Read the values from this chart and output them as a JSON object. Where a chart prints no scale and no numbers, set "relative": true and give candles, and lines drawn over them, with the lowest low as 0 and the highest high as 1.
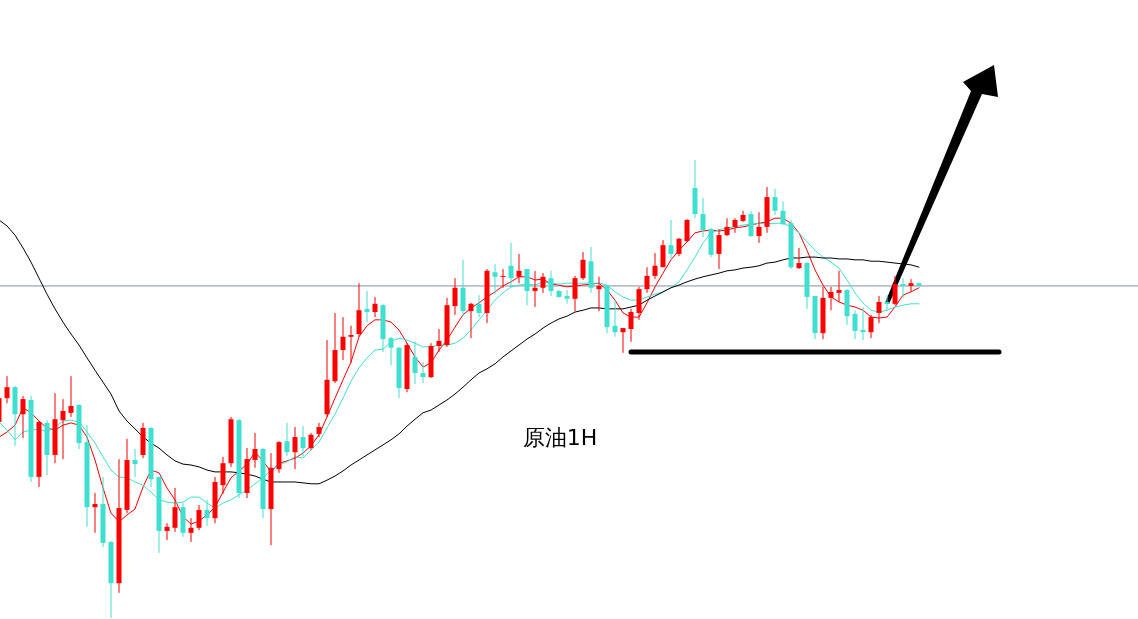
{
  "chart_data": {
    "type": "candlestick",
    "relative": true,
    "categories": [
      null,
      null,
      null,
      null,
      null,
      null,
      null,
      null,
      null,
      null,
      null,
      null,
      null,
      null,
      null,
      null,
      null,
      null,
      null,
      null,
      null,
      null,
      null,
      null,
      null,
      null,
      null,
      null,
      null,
      null,
      null,
      null,
      null,
      null,
      null,
      null,
      null,
      null,
      null,
      null,
      null,
      null,
      null,
      null,
      null,
      null,
      null,
      null,
      null,
      null,
      null,
      null,
      null,
      null,
      null,
      null,
      null,
      null,
      null,
      null,
      null,
      null,
      null,
      null,
      null,
      null,
      null,
      null,
      null,
      null,
      null,
      null,
      null,
      null,
      null,
      null,
      null,
      null,
      null,
      null,
      null,
      null,
      null,
      null,
      null,
      null,
      null,
      null,
      null,
      null,
      null,
      null,
      null,
      null,
      null,
      null,
      null,
      null,
      null,
      null,
      null,
      null,
      null,
      null,
      null,
      null,
      null,
      null,
      null,
      null,
      null,
      null,
      null,
      null,
      null,
      null,
      null,
      null,
      null,
      null,
      null,
      null,
      null,
      null,
      null,
      null,
      null,
      null,
      null,
      null,
      null,
      null,
      null,
      null,
      null,
      null,
      null,
      null,
      null,
      null,
      null,
      null,
      null
    ],
    "ohlc": [
      [
        0.428,
        0.487,
        0.421,
        0.48
      ],
      [
        0.48,
        0.528,
        0.469,
        0.504
      ],
      [
        0.504,
        0.507,
        0.376,
        0.445
      ],
      [
        0.445,
        0.485,
        0.393,
        0.478
      ],
      [
        0.476,
        0.485,
        0.297,
        0.308
      ],
      [
        0.308,
        0.43,
        0.286,
        0.428
      ],
      [
        0.426,
        0.432,
        0.312,
        0.356
      ],
      [
        0.356,
        0.491,
        0.338,
        0.434
      ],
      [
        0.432,
        0.478,
        0.347,
        0.452
      ],
      [
        0.448,
        0.528,
        0.439,
        0.463
      ],
      [
        0.465,
        0.467,
        0.369,
        0.382
      ],
      [
        0.384,
        0.421,
        0.199,
        0.242
      ],
      [
        0.242,
        0.273,
        0.186,
        0.249
      ],
      [
        0.249,
        0.308,
        0.155,
        0.164
      ],
      [
        0.166,
        0.168,
        0,
        0.076
      ],
      [
        0.076,
        0.347,
        0.055,
        0.24
      ],
      [
        0.236,
        0.391,
        0.229,
        0.345
      ],
      [
        0.345,
        0.369,
        0.308,
        0.336
      ],
      [
        0.356,
        0.426,
        0.349,
        0.415
      ],
      [
        0.415,
        0.417,
        0.286,
        0.303
      ],
      [
        0.308,
        0.308,
        0.142,
        0.19
      ],
      [
        0.19,
        0.207,
        0.17,
        0.199
      ],
      [
        0.197,
        0.284,
        0.188,
        0.242
      ],
      [
        0.242,
        0.251,
        0.177,
        0.186
      ],
      [
        0.186,
        0.218,
        0.166,
        0.197
      ],
      [
        0.197,
        0.247,
        0.192,
        0.236
      ],
      [
        0.236,
        0.258,
        0.201,
        0.218
      ],
      [
        0.218,
        0.308,
        0.207,
        0.297
      ],
      [
        0.29,
        0.352,
        0.271,
        0.338
      ],
      [
        0.338,
        0.439,
        0.33,
        0.434
      ],
      [
        0.432,
        0.434,
        0.262,
        0.273
      ],
      [
        0.273,
        0.371,
        0.262,
        0.347
      ],
      [
        0.345,
        0.404,
        0.328,
        0.369
      ],
      [
        0.369,
        0.371,
        0.218,
        0.238
      ],
      [
        0.238,
        0.36,
        0.159,
        0.328
      ],
      [
        0.325,
        0.386,
        0.317,
        0.384
      ],
      [
        0.386,
        0.426,
        0.354,
        0.362
      ],
      [
        0.362,
        0.417,
        0.325,
        0.395
      ],
      [
        0.395,
        0.419,
        0.352,
        0.371
      ],
      [
        0.371,
        0.404,
        0.367,
        0.4
      ],
      [
        0.402,
        0.426,
        0.395,
        0.417
      ],
      [
        0.445,
        0.607,
        0.439,
        0.52
      ],
      [
        0.517,
        0.666,
        0.513,
        0.585
      ],
      [
        0.585,
        0.657,
        0.563,
        0.614
      ],
      [
        0.614,
        0.638,
        0.557,
        0.618
      ],
      [
        0.62,
        0.731,
        0.614,
        0.672
      ],
      [
        0.675,
        0.714,
        0.646,
        0.668
      ],
      [
        0.668,
        0.701,
        0.657,
        0.686
      ],
      [
        0.683,
        0.686,
        0.581,
        0.609
      ],
      [
        0.611,
        0.614,
        0.552,
        0.59
      ],
      [
        0.59,
        0.592,
        0.48,
        0.502
      ],
      [
        0.5,
        0.6,
        0.493,
        0.596
      ],
      [
        0.57,
        0.603,
        0.511,
        0.535
      ],
      [
        0.535,
        0.559,
        0.513,
        0.526
      ],
      [
        0.526,
        0.6,
        0.524,
        0.594
      ],
      [
        0.594,
        0.631,
        0.581,
        0.605
      ],
      [
        0.596,
        0.699,
        0.592,
        0.683
      ],
      [
        0.681,
        0.742,
        0.662,
        0.721
      ],
      [
        0.721,
        0.782,
        0.659,
        0.67
      ],
      [
        0.67,
        0.688,
        0.611,
        0.686
      ],
      [
        0.686,
        0.705,
        0.657,
        0.666
      ],
      [
        0.666,
        0.762,
        0.644,
        0.758
      ],
      [
        0.755,
        0.773,
        0.707,
        0.745
      ],
      [
        0.745,
        0.762,
        0.721,
        0.747
      ],
      [
        0.769,
        0.819,
        0.721,
        0.742
      ],
      [
        0.745,
        0.795,
        0.731,
        0.758
      ],
      [
        0.762,
        0.762,
        0.683,
        0.714
      ],
      [
        0.714,
        0.758,
        0.679,
        0.721
      ],
      [
        0.721,
        0.753,
        0.71,
        0.745
      ],
      [
        0.742,
        0.758,
        0.703,
        0.714
      ],
      [
        0.714,
        0.716,
        0.699,
        0.701
      ],
      [
        0.703,
        0.716,
        0.686,
        0.697
      ],
      [
        0.697,
        0.747,
        0.67,
        0.742
      ],
      [
        0.742,
        0.799,
        0.738,
        0.782
      ],
      [
        0.779,
        0.81,
        0.71,
        0.721
      ],
      [
        0.718,
        0.745,
        0.67,
        0.725
      ],
      [
        0.725,
        0.727,
        0.622,
        0.635
      ],
      [
        0.638,
        0.694,
        0.614,
        0.624
      ],
      [
        0.624,
        0.633,
        0.579,
        0.633
      ],
      [
        0.631,
        0.675,
        0.603,
        0.668
      ],
      [
        0.666,
        0.723,
        0.651,
        0.718
      ],
      [
        0.718,
        0.766,
        0.71,
        0.747
      ],
      [
        0.747,
        0.797,
        0.74,
        0.769
      ],
      [
        0.766,
        0.825,
        0.766,
        0.814
      ],
      [
        0.814,
        0.869,
        0.784,
        0.795
      ],
      [
        0.795,
        0.83,
        0.79,
        0.828
      ],
      [
        0.823,
        0.871,
        0.821,
        0.869
      ],
      [
        0.939,
        1,
        0.873,
        0.882
      ],
      [
        0.882,
        0.917,
        0.832,
        0.847
      ],
      [
        0.849,
        0.852,
        0.788,
        0.793
      ],
      [
        0.795,
        0.849,
        0.762,
        0.836
      ],
      [
        0.836,
        0.873,
        0.834,
        0.854
      ],
      [
        0.854,
        0.873,
        0.841,
        0.869
      ],
      [
        0.867,
        0.889,
        0.865,
        0.88
      ],
      [
        0.882,
        0.889,
        0.832,
        0.834
      ],
      [
        0.834,
        0.886,
        0.819,
        0.854
      ],
      [
        0.854,
        0.941,
        0.841,
        0.919
      ],
      [
        0.919,
        0.937,
        0.88,
        0.889
      ],
      [
        0.889,
        0.91,
        0.858,
        0.86
      ],
      [
        0.862,
        0.869,
        0.762,
        0.766
      ],
      [
        0.764,
        0.808,
        0.762,
        0.775
      ],
      [
        0.775,
        0.777,
        0.675,
        0.701
      ],
      [
        0.703,
        0.703,
        0.609,
        0.622
      ],
      [
        0.622,
        0.723,
        0.609,
        0.699
      ],
      [
        0.699,
        0.723,
        0.672,
        0.712
      ],
      [
        0.71,
        0.758,
        0.69,
        0.716
      ],
      [
        0.716,
        0.718,
        0.64,
        0.659
      ],
      [
        0.664,
        0.672,
        0.609,
        0.627
      ],
      [
        0.629,
        0.679,
        0.607,
        0.624
      ],
      [
        0.624,
        0.662,
        0.611,
        0.657
      ],
      [
        0.666,
        0.703,
        0.644,
        0.69
      ],
      [
        0.69,
        0.705,
        0.672,
        0.686
      ],
      [
        0.686,
        0.747,
        0.683,
        0.729
      ],
      [
        0.729,
        0.742,
        0.699,
        0.725
      ],
      [
        0.725,
        0.74,
        0.712,
        0.731
      ],
      [
        0.731,
        0.731,
        0.725,
        0.725
      ],
      null,
      null,
      null,
      null,
      null,
      null,
      null,
      null,
      null,
      null,
      null,
      null,
      null,
      null,
      null,
      null,
      null,
      null,
      null,
      null,
      null,
      null,
      null,
      null,
      null,
      null,
      null
    ],
    "colors": [
      "#ff0000",
      "#ff0000",
      "#40e0d0",
      "#ff0000",
      "#40e0d0",
      "#ff0000",
      "#40e0d0",
      "#ff0000",
      "#ff0000",
      "#ff0000",
      "#40e0d0",
      "#40e0d0",
      "#ff0000",
      "#40e0d0",
      "#40e0d0",
      "#ff0000",
      "#ff0000",
      "#40e0d0",
      "#ff0000",
      "#40e0d0",
      "#40e0d0",
      "#ff0000",
      "#ff0000",
      "#40e0d0",
      "#ff0000",
      "#ff0000",
      "#40e0d0",
      "#ff0000",
      "#ff0000",
      "#ff0000",
      "#40e0d0",
      "#ff0000",
      "#ff0000",
      "#40e0d0",
      "#ff0000",
      "#ff0000",
      "#40e0d0",
      "#ff0000",
      "#40e0d0",
      "#ff0000",
      "#ff0000",
      "#ff0000",
      "#ff0000",
      "#ff0000",
      "#ff0000",
      "#ff0000",
      "#40e0d0",
      "#ff0000",
      "#40e0d0",
      "#40e0d0",
      "#40e0d0",
      "#ff0000",
      "#40e0d0",
      "#40e0d0",
      "#ff0000",
      "#ff0000",
      "#ff0000",
      "#ff0000",
      "#40e0d0",
      "#ff0000",
      "#40e0d0",
      "#ff0000",
      "#40e0d0",
      "#ff0000",
      "#40e0d0",
      "#ff0000",
      "#40e0d0",
      "#ff0000",
      "#ff0000",
      "#40e0d0",
      "#40e0d0",
      "#40e0d0",
      "#ff0000",
      "#ff0000",
      "#40e0d0",
      "#ff0000",
      "#40e0d0",
      "#40e0d0",
      "#ff0000",
      "#ff0000",
      "#ff0000",
      "#ff0000",
      "#ff0000",
      "#ff0000",
      "#40e0d0",
      "#ff0000",
      "#ff0000",
      "#40e0d0",
      "#40e0d0",
      "#40e0d0",
      "#ff0000",
      "#ff0000",
      "#ff0000",
      "#ff0000",
      "#40e0d0",
      "#ff0000",
      "#ff0000",
      "#40e0d0",
      "#40e0d0",
      "#40e0d0",
      "#ff0000",
      "#40e0d0",
      "#40e0d0",
      "#ff0000",
      "#ff0000",
      "#ff0000",
      "#40e0d0",
      "#40e0d0",
      "#40e0d0",
      "#ff0000",
      "#ff0000",
      "#40e0d0",
      "#ff0000",
      "#40e0d0",
      "#ff0000",
      "#40e0d0",
      null,
      null,
      null,
      null,
      null,
      null,
      null,
      null,
      null,
      null,
      null,
      null,
      null,
      null,
      null,
      null,
      null,
      null,
      null,
      null,
      null,
      null,
      null,
      null,
      null,
      null,
      null
    ],
    "series": [
      {
        "type": "line",
        "color": "#ff0000",
        "values": [
          0.395,
          0.406,
          0.421,
          0.459,
          0.448,
          0.43,
          0.415,
          0.41,
          0.421,
          0.426,
          0.421,
          0.395,
          0.345,
          0.284,
          0.229,
          0.21,
          0.225,
          0.238,
          0.286,
          0.323,
          0.317,
          0.284,
          0.258,
          0.221,
          0.205,
          0.212,
          0.225,
          0.242,
          0.275,
          0.306,
          0.321,
          0.336,
          0.362,
          0.343,
          0.319,
          0.338,
          0.343,
          0.349,
          0.36,
          0.376,
          0.4,
          0.439,
          0.48,
          0.52,
          0.559,
          0.614,
          0.638,
          0.651,
          0.651,
          0.646,
          0.629,
          0.6,
          0.57,
          0.548,
          0.557,
          0.585,
          0.607,
          0.635,
          0.662,
          0.677,
          0.688,
          0.701,
          0.712,
          0.725,
          0.734,
          0.745,
          0.745,
          0.738,
          0.74,
          0.729,
          0.727,
          0.723,
          0.725,
          0.727,
          0.729,
          0.731,
          0.716,
          0.694,
          0.666,
          0.657,
          0.657,
          0.688,
          0.723,
          0.753,
          0.782,
          0.803,
          0.821,
          0.841,
          0.845,
          0.847,
          0.845,
          0.847,
          0.852,
          0.854,
          0.858,
          0.862,
          0.865,
          0.873,
          0.873,
          0.862,
          0.841,
          0.803,
          0.76,
          0.727,
          0.701,
          0.69,
          0.683,
          0.679,
          0.672,
          0.657,
          0.655,
          0.657,
          0.679,
          0.705,
          0.712,
          0.721,
          null,
          null,
          null,
          null,
          null,
          null,
          null,
          null,
          null,
          null,
          null,
          null,
          null,
          null,
          null,
          null,
          null,
          null,
          null,
          null,
          null,
          null,
          null,
          null,
          null,
          null,
          null
        ]
      },
      {
        "type": "line",
        "color": "#40e0d0",
        "values": [
          0.428,
          0.41,
          0.389,
          0.406,
          0.41,
          0.413,
          0.406,
          0.417,
          0.43,
          0.432,
          0.428,
          0.406,
          0.382,
          0.352,
          0.323,
          0.308,
          0.306,
          0.297,
          0.29,
          0.275,
          0.258,
          0.253,
          0.251,
          0.253,
          0.264,
          0.264,
          0.251,
          0.24,
          0.251,
          0.258,
          0.269,
          0.279,
          0.293,
          0.306,
          0.323,
          0.334,
          0.341,
          0.352,
          0.349,
          0.367,
          0.384,
          0.415,
          0.445,
          0.48,
          0.517,
          0.546,
          0.568,
          0.585,
          0.587,
          0.603,
          0.611,
          0.607,
          0.6,
          0.592,
          0.592,
          0.596,
          0.596,
          0.6,
          0.611,
          0.629,
          0.651,
          0.672,
          0.694,
          0.71,
          0.723,
          0.727,
          0.729,
          0.727,
          0.734,
          0.731,
          0.729,
          0.731,
          0.731,
          0.731,
          0.731,
          0.731,
          0.727,
          0.712,
          0.701,
          0.694,
          0.694,
          0.701,
          0.707,
          0.712,
          0.721,
          0.734,
          0.76,
          0.788,
          0.819,
          0.841,
          0.847,
          0.852,
          0.854,
          0.858,
          0.86,
          0.862,
          0.86,
          0.862,
          0.862,
          0.854,
          0.841,
          0.821,
          0.803,
          0.788,
          0.777,
          0.764,
          0.738,
          0.71,
          0.688,
          0.672,
          0.668,
          0.672,
          0.679,
          0.683,
          0.686,
          0.686,
          null,
          null,
          null,
          null,
          null,
          null,
          null,
          null,
          null,
          null,
          null,
          null,
          null,
          null,
          null,
          null,
          null,
          null,
          null,
          null,
          null,
          null,
          null,
          null,
          null,
          null,
          null
        ]
      },
      {
        "type": "line",
        "color": "#000000",
        "values": [
          0.869,
          0.856,
          0.836,
          0.808,
          0.777,
          0.742,
          0.707,
          0.675,
          0.646,
          0.62,
          0.596,
          0.568,
          0.541,
          0.515,
          0.489,
          0.452,
          0.43,
          0.413,
          0.395,
          0.382,
          0.371,
          0.356,
          0.343,
          0.336,
          0.334,
          0.33,
          0.323,
          0.319,
          0.319,
          0.319,
          0.317,
          0.314,
          0.31,
          0.303,
          0.297,
          0.297,
          0.297,
          0.297,
          0.295,
          0.293,
          0.293,
          0.301,
          0.31,
          0.321,
          0.334,
          0.345,
          0.356,
          0.367,
          0.378,
          0.389,
          0.402,
          0.419,
          0.434,
          0.448,
          0.454,
          0.465,
          0.476,
          0.489,
          0.504,
          0.52,
          0.535,
          0.544,
          0.555,
          0.57,
          0.583,
          0.596,
          0.609,
          0.62,
          0.633,
          0.644,
          0.653,
          0.659,
          0.668,
          0.672,
          0.677,
          0.677,
          0.675,
          0.675,
          0.675,
          0.679,
          0.683,
          0.694,
          0.703,
          0.712,
          0.721,
          0.727,
          0.734,
          0.74,
          0.745,
          0.749,
          0.753,
          0.758,
          0.76,
          0.764,
          0.766,
          0.769,
          0.775,
          0.777,
          0.782,
          0.786,
          0.786,
          0.788,
          0.788,
          0.786,
          0.786,
          0.784,
          0.784,
          0.782,
          0.782,
          0.779,
          0.779,
          0.777,
          0.775,
          0.773,
          0.771,
          0.766,
          null,
          null,
          null,
          null,
          null,
          null,
          null,
          null,
          null,
          null,
          null,
          null,
          null,
          null,
          null,
          null,
          null,
          null,
          null,
          null,
          null,
          null,
          null,
          null,
          null,
          null,
          null
        ]
      },
      {
        "type": "line",
        "color": "#000000",
        "values": [
          null,
          null,
          null,
          null,
          null,
          null,
          null,
          null,
          null,
          null,
          null,
          null,
          null,
          null,
          null,
          null,
          null,
          null,
          null,
          null,
          null,
          null,
          null,
          null,
          null,
          null,
          null,
          null,
          null,
          null,
          null,
          null,
          null,
          null,
          null,
          null,
          null,
          null,
          null,
          null,
          null,
          null,
          null,
          null,
          null,
          null,
          null,
          null,
          null,
          null,
          null,
          null,
          null,
          null,
          null,
          null,
          null,
          null,
          null,
          null,
          null,
          null,
          null,
          null,
          null,
          null,
          null,
          null,
          null,
          null,
          null,
          null,
          null,
          null,
          null,
          null,
          null,
          null,
          null,
          0.581,
          0.581,
          0.581,
          0.581,
          0.581,
          0.581,
          0.581,
          0.581,
          0.581,
          0.581,
          0.581,
          0.581,
          0.581,
          0.581,
          0.581,
          0.581,
          0.581,
          0.581,
          0.581,
          0.581,
          0.581,
          0.581,
          0.581,
          0.581,
          0.581,
          0.581,
          0.581,
          0.581,
          0.581,
          0.581,
          0.581,
          0.581,
          0.581,
          0.581,
          0.581,
          0.581,
          0.581,
          0.581,
          0.581,
          0.581,
          0.581,
          0.581,
          0.581,
          0.581,
          0.581,
          0.581,
          0.581,
          null,
          null,
          null,
          null,
          null,
          null,
          null,
          null,
          null,
          null,
          null,
          null,
          null,
          null,
          null,
          null,
          null
        ]
      }
    ],
    "ref_lines": [
      {
        "axis": "y",
        "value": 0.725,
        "color": "#7f93a8"
      }
    ],
    "annotations": [
      "原油1H"
    ]
  }
}
